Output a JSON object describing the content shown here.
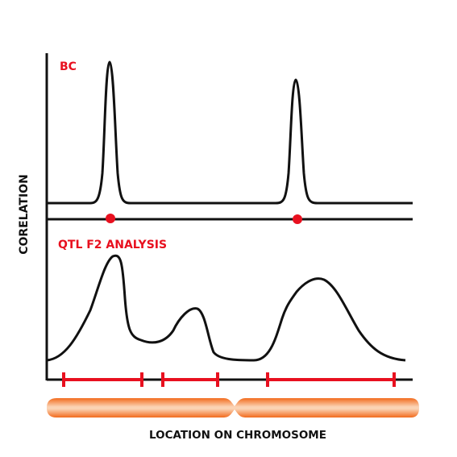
{
  "labels": {
    "top_panel": "BC",
    "bottom_panel": "QTL F2 ANALYSIS",
    "y_axis": "CORELATION",
    "x_axis": "LOCATION ON CHROMOSOME"
  },
  "colors": {
    "ink": "#111111",
    "accent_red": "#e8101f",
    "chromosome_orange": "#f26b1d",
    "chromosome_highlight": "#fbd3b4",
    "background": "#ffffff"
  },
  "bc_peaks": {
    "count": 2,
    "markers": "red-dots"
  },
  "qtl_intervals": {
    "count": 3,
    "markers": "red-bars"
  },
  "chromosome": {
    "shape": "orange-bar-with-centromere"
  }
}
